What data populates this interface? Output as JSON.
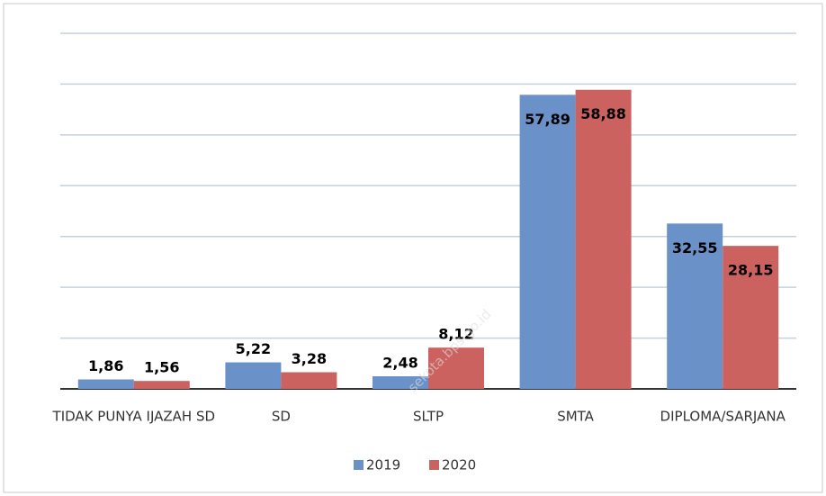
{
  "chart_data": {
    "type": "bar",
    "categories": [
      "TIDAK PUNYA IJAZAH SD",
      "SD",
      "SLTP",
      "SMTA",
      "DIPLOMA/SARJANA"
    ],
    "series": [
      {
        "name": "2019",
        "color": "#6b91c9",
        "values": [
          1.86,
          5.22,
          2.48,
          57.89,
          32.55
        ],
        "value_labels": [
          "1,86",
          "5,22",
          "2,48",
          "57,89",
          "32,55"
        ]
      },
      {
        "name": "2020",
        "color": "#cb625f",
        "values": [
          1.56,
          3.28,
          8.12,
          58.88,
          28.15
        ],
        "value_labels": [
          "1,56",
          "3,28",
          "8,12",
          "58,88",
          "28,15"
        ]
      }
    ],
    "ylim": [
      0,
      70
    ],
    "yticks": [
      0,
      10,
      20,
      30,
      40,
      50,
      60,
      70
    ],
    "grid": true,
    "legend": "bottom",
    "watermark": "sekota.bps.go.id"
  }
}
